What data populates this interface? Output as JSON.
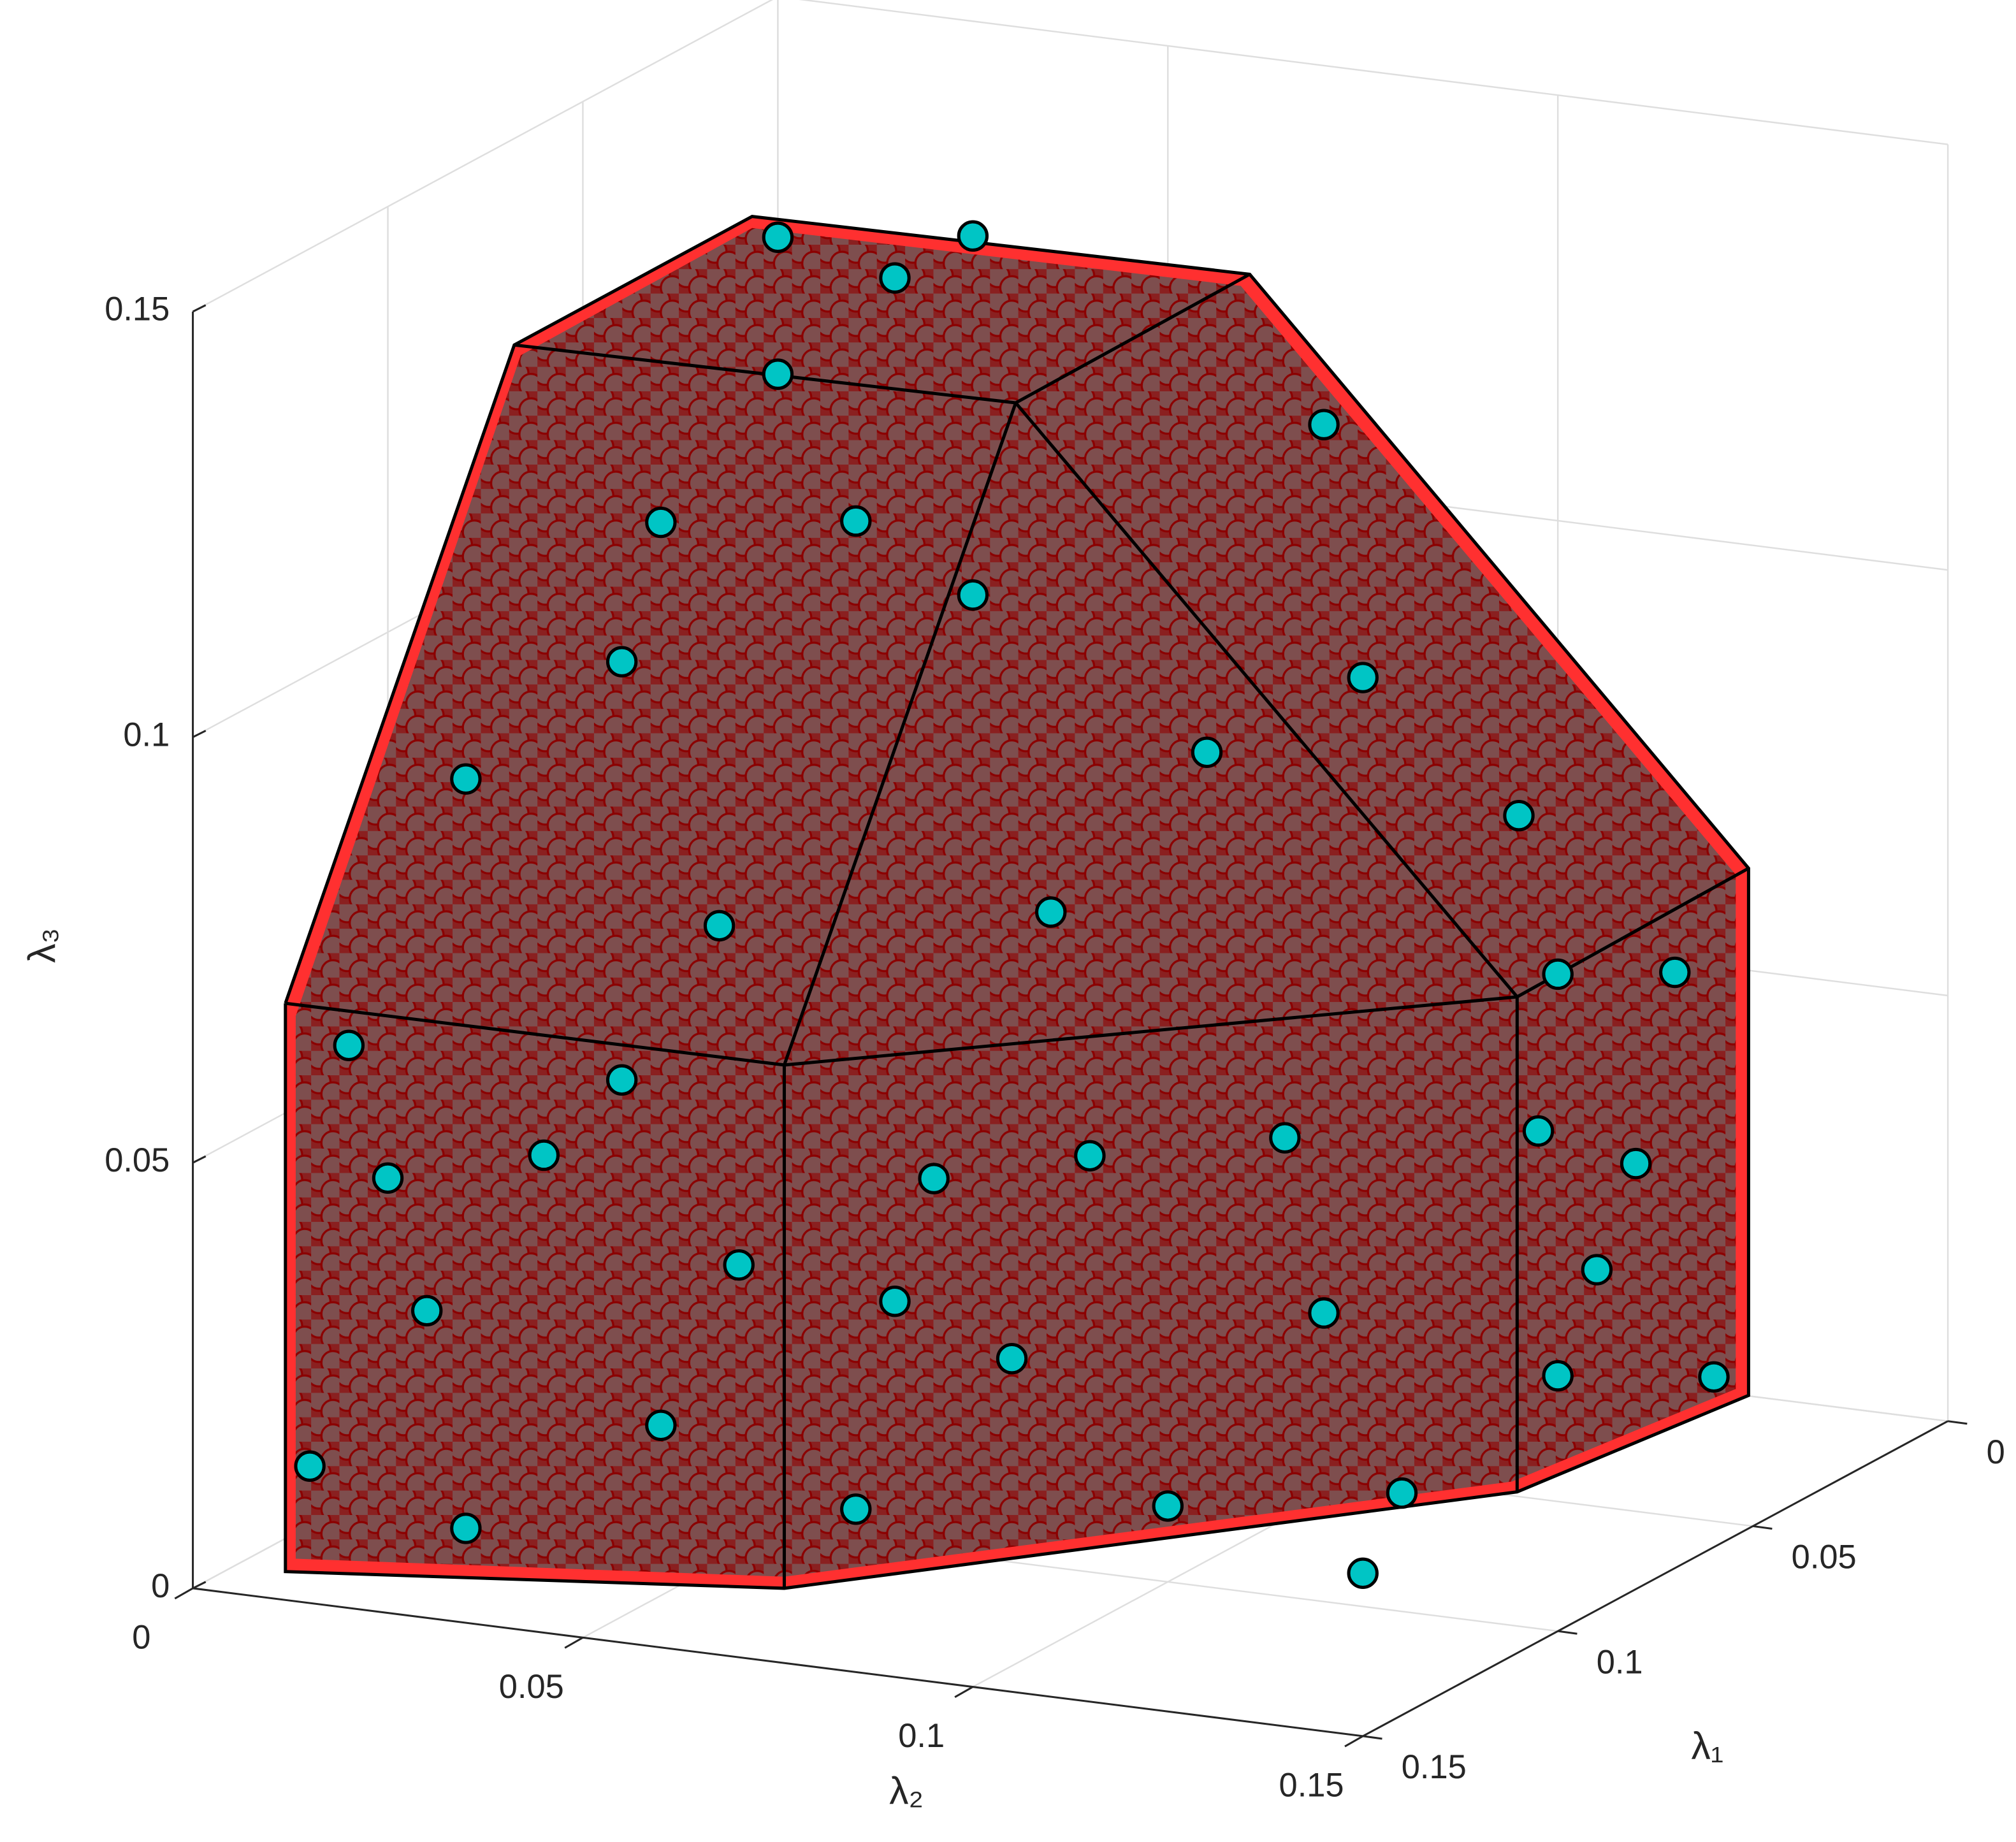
{
  "chart_data": {
    "type": "scatter3d",
    "xlabel": "λ₁",
    "ylabel": "λ₂",
    "zlabel": "λ₃",
    "xlim": [
      0,
      0.15
    ],
    "ylim": [
      0,
      0.15
    ],
    "zlim": [
      0,
      0.15
    ],
    "xticks": [
      0,
      0.05,
      0.1,
      0.15
    ],
    "yticks": [
      0,
      0.05,
      0.1,
      0.15
    ],
    "zticks": [
      0,
      0.05,
      0.1,
      0.15
    ],
    "grid": true,
    "color": "#00c5c5",
    "x": [
      0.12,
      0.12,
      0.12,
      0.12,
      0.12,
      0.12,
      0.12,
      0.12,
      0.12,
      0.12,
      0.13,
      0.13,
      0.13,
      0.13,
      0.13,
      0.13,
      0.13,
      0.13,
      0.13,
      0.06,
      0.08,
      0.1,
      0.07,
      0.09,
      0.105,
      0.05,
      0.06,
      0.08,
      0.09,
      0.1,
      0.11,
      0.07,
      0.05,
      0.12,
      0.1,
      0.04,
      0.07,
      0.11,
      0.09,
      0.06,
      0.115
    ],
    "y": [
      0.07,
      0.09,
      0.11,
      0.13,
      0.14,
      0.08,
      0.1,
      0.125,
      0.075,
      0.135,
      0.005,
      0.02,
      0.035,
      0.05,
      0.06,
      0.01,
      0.045,
      0.025,
      0.015,
      0.15,
      0.15,
      0.15,
      0.15,
      0.15,
      0.15,
      0.05,
      0.03,
      0.04,
      0.07,
      0.03,
      0.09,
      0.11,
      0.12,
      0.02,
      0.06,
      0.09,
      0.05,
      0.04,
      0.1,
      0.13,
      0.05
    ],
    "z": [
      0.01,
      0.03,
      0.015,
      0.04,
      0.02,
      0.05,
      0.055,
      0.06,
      0.035,
      0.01,
      0.01,
      0.03,
      0.05,
      0.02,
      0.04,
      0.06,
      0.06,
      0.005,
      0.045,
      0.02,
      0.05,
      0.03,
      0.07,
      0.04,
      0.06,
      0.14,
      0.14,
      0.13,
      0.11,
      0.1,
      0.08,
      0.1,
      0.08,
      0.09,
      0.12,
      0.12,
      0.14,
      0.12,
      0.095,
      0.065,
      0.075
    ]
  }
}
